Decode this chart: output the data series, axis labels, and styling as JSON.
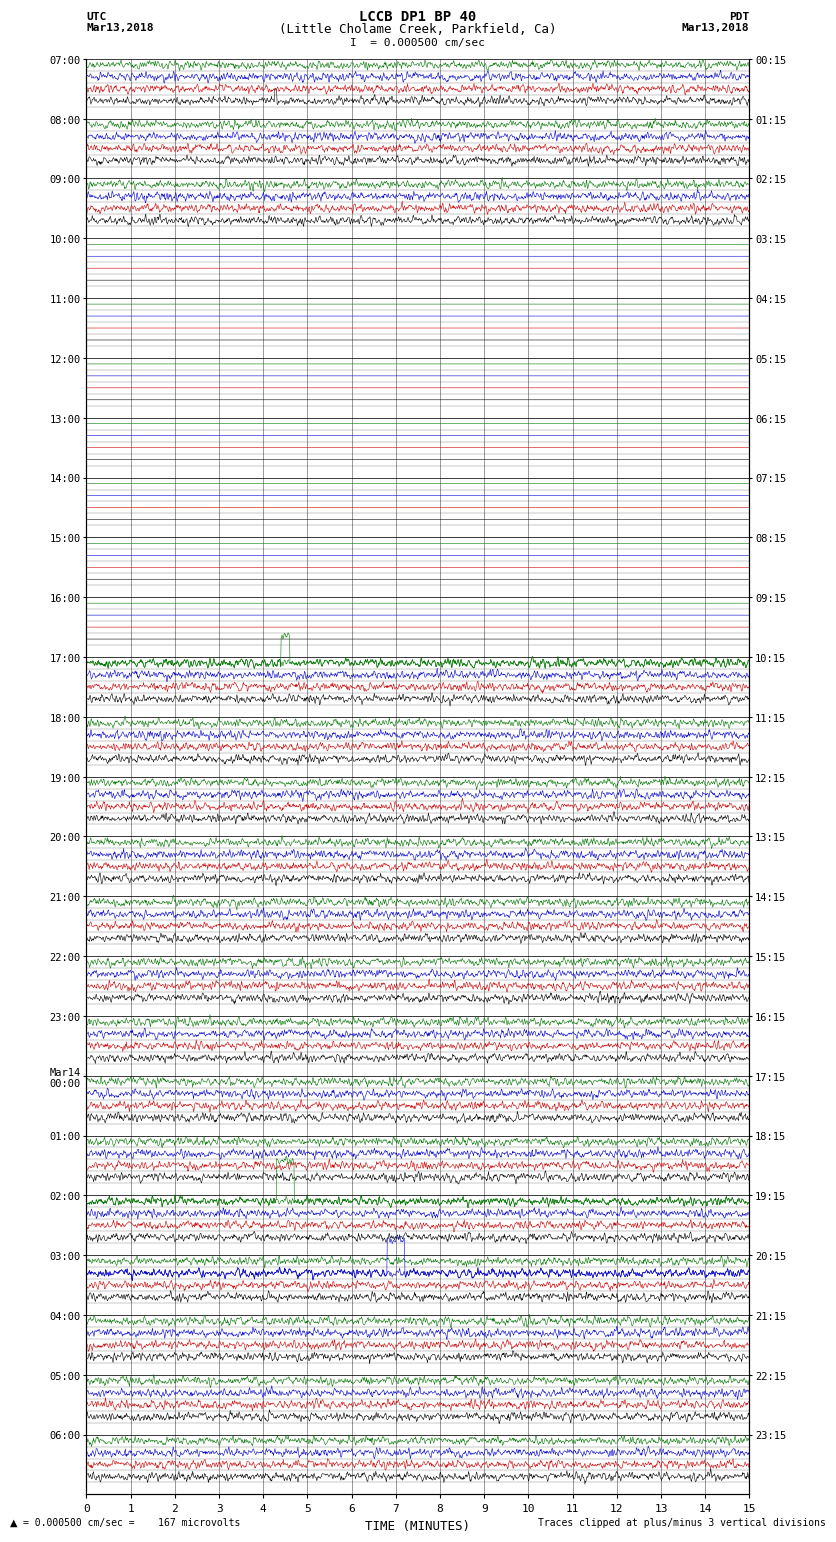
{
  "title_line1": "LCCB DP1 BP 40",
  "title_line2": "(Little Cholame Creek, Parkfield, Ca)",
  "scale_label": "I  = 0.000500 cm/sec",
  "left_label_header": "UTC",
  "left_label_date": "Mar13,2018",
  "right_label_header": "PDT",
  "right_label_date": "Mar13,2018",
  "xlabel": "TIME (MINUTES)",
  "bottom_left_note": "= 0.000500 cm/sec =    167 microvolts",
  "bottom_right_note": "Traces clipped at plus/minus 3 vertical divisions",
  "xmin": 0,
  "xmax": 15,
  "background_color": "#ffffff",
  "trace_colors": [
    "#000000",
    "#cc0000",
    "#0000cc",
    "#007700"
  ],
  "figwidth": 8.5,
  "figheight": 16.13,
  "utc_labels": [
    "07:00",
    "08:00",
    "09:00",
    "10:00",
    "11:00",
    "12:00",
    "13:00",
    "14:00",
    "15:00",
    "16:00",
    "17:00",
    "18:00",
    "19:00",
    "20:00",
    "21:00",
    "22:00",
    "23:00",
    "Mar14\n00:00",
    "01:00",
    "02:00",
    "03:00",
    "04:00",
    "05:00",
    "06:00"
  ],
  "pdt_labels": [
    "00:15",
    "01:15",
    "02:15",
    "03:15",
    "04:15",
    "05:15",
    "06:15",
    "07:15",
    "08:15",
    "09:15",
    "10:15",
    "11:15",
    "12:15",
    "13:15",
    "14:15",
    "15:15",
    "16:15",
    "17:15",
    "18:15",
    "19:15",
    "20:15",
    "21:15",
    "22:15",
    "23:15"
  ],
  "active_hours": [
    0,
    1,
    2,
    10,
    11,
    12,
    13,
    14,
    15,
    16,
    17,
    18,
    19,
    20,
    21,
    22,
    23
  ],
  "num_hours": 24,
  "traces_per_hour": 4,
  "amp_active": 0.28,
  "amp_quiet": 0.0,
  "trace_lw": 0.4
}
